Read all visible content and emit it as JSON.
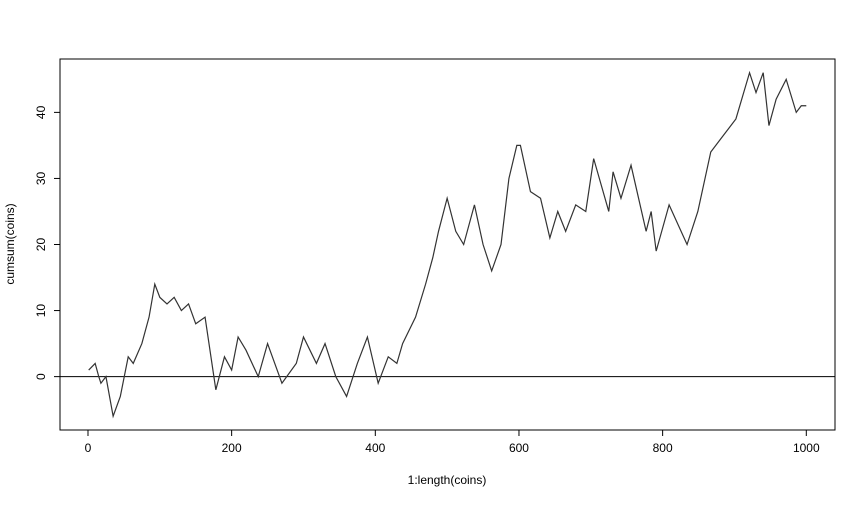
{
  "chart_data": {
    "type": "line",
    "xlabel": "1:length(coins)",
    "ylabel": "cumsum(coins)",
    "x": [
      1,
      10,
      15,
      18,
      25,
      35,
      45,
      56,
      63,
      75,
      85,
      93,
      100,
      110,
      120,
      130,
      140,
      150,
      163,
      178,
      190,
      200,
      209,
      220,
      237,
      250,
      270,
      290,
      300,
      318,
      330,
      345,
      360,
      375,
      389,
      404,
      418,
      430,
      438,
      456,
      470,
      480,
      488,
      500,
      512,
      523,
      538,
      550,
      562,
      575,
      586,
      597,
      602,
      616,
      630,
      643,
      654,
      665,
      679,
      693,
      704,
      725,
      731,
      742,
      756,
      777,
      784,
      791,
      809,
      834,
      849,
      867,
      881,
      902,
      921,
      930,
      940,
      948,
      958,
      972,
      986,
      993,
      1000
    ],
    "values": [
      1,
      2,
      0,
      -1,
      0,
      -6,
      -3,
      3,
      2,
      5,
      9,
      14,
      12,
      11,
      12,
      10,
      11,
      8,
      9,
      -2,
      3,
      1,
      6,
      4,
      0,
      5,
      -1,
      2,
      6,
      2,
      5,
      0,
      -3,
      2,
      6,
      -1,
      3,
      2,
      5,
      9,
      14,
      18,
      22,
      27,
      22,
      20,
      26,
      20,
      16,
      20,
      30,
      35,
      35,
      28,
      27,
      21,
      25,
      22,
      26,
      25,
      33,
      25,
      31,
      27,
      32,
      22,
      25,
      19,
      26,
      20,
      25,
      34,
      36,
      39,
      46,
      43,
      46,
      38,
      42,
      45,
      40,
      41,
      41
    ],
    "color": "#333333",
    "xlim": [
      -38.96,
      1039.96
    ],
    "ylim": [
      -8.08,
      48.08
    ],
    "xticks": [
      0,
      200,
      400,
      600,
      800,
      1000
    ],
    "yticks": [
      0,
      10,
      20,
      30,
      40
    ],
    "hline": 0
  }
}
